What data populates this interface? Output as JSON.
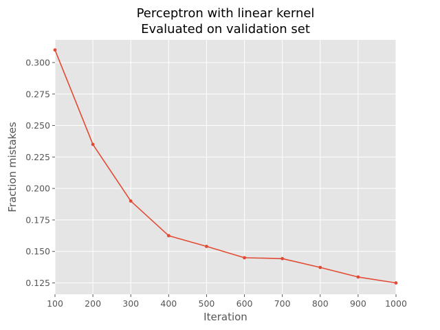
{
  "chart_data": {
    "type": "line",
    "title": [
      "Perceptron with linear kernel",
      "Evaluated on validation set"
    ],
    "xlabel": "Iteration",
    "ylabel": "Fraction mistakes",
    "xlim": [
      100,
      1000
    ],
    "ylim": [
      0.116,
      0.318
    ],
    "xticks": [
      100,
      200,
      300,
      400,
      500,
      600,
      700,
      800,
      900,
      1000
    ],
    "yticks": [
      "0.125",
      "0.150",
      "0.175",
      "0.200",
      "0.225",
      "0.250",
      "0.275",
      "0.300"
    ],
    "grid": true,
    "legend": "none",
    "series": [
      {
        "color": "#E24A33",
        "marker": "dot",
        "x": [
          100,
          200,
          300,
          400,
          500,
          600,
          700,
          800,
          900,
          1000
        ],
        "y": [
          0.31,
          0.235,
          0.19,
          0.1625,
          0.154,
          0.145,
          0.1443,
          0.1373,
          0.1297,
          0.125
        ]
      }
    ]
  },
  "colors": {
    "axes_bg": "#E5E5E5",
    "grid": "#FFFFFF",
    "text": "#555555"
  }
}
